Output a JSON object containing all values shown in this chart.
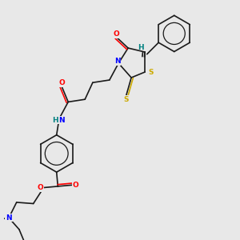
{
  "background_color": "#e8e8e8",
  "bond_color": "#1a1a1a",
  "atom_colors": {
    "O": "#ff0000",
    "N": "#0000ff",
    "S": "#ccaa00",
    "H_label": "#008080",
    "C": "#1a1a1a"
  },
  "fig_width": 3.0,
  "fig_height": 3.0,
  "dpi": 100
}
